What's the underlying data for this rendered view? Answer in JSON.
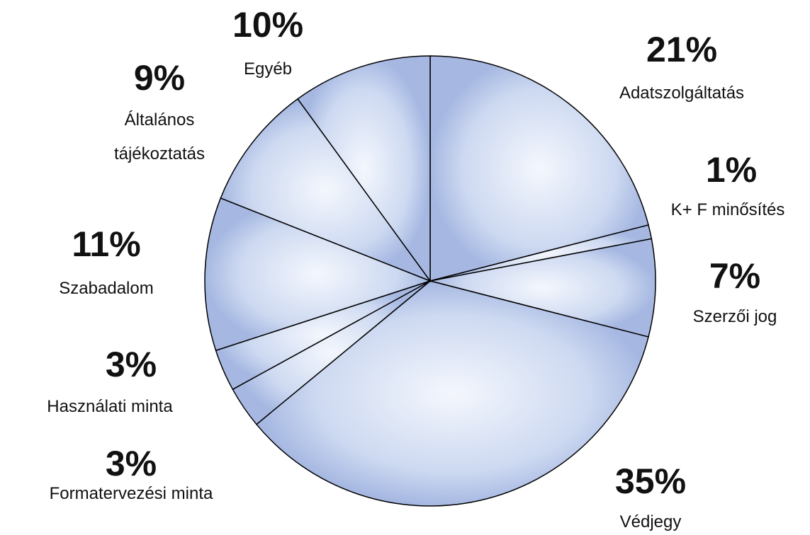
{
  "chart_data": {
    "type": "pie",
    "categories": [
      "Adatszolgáltatás",
      "K+ F minősítés",
      "Szerzői jog",
      "Védjegy",
      "Formatervezési minta",
      "Használati minta",
      "Szabadalom",
      "Általános tájékoztatás",
      "Egyéb"
    ],
    "values": [
      21,
      1,
      7,
      35,
      3,
      3,
      11,
      9,
      10
    ],
    "value_labels": [
      "21%",
      "1%",
      "7%",
      "35%",
      "3%",
      "3%",
      "11%",
      "9%",
      "10%"
    ],
    "color": "#c3d1ee"
  }
}
